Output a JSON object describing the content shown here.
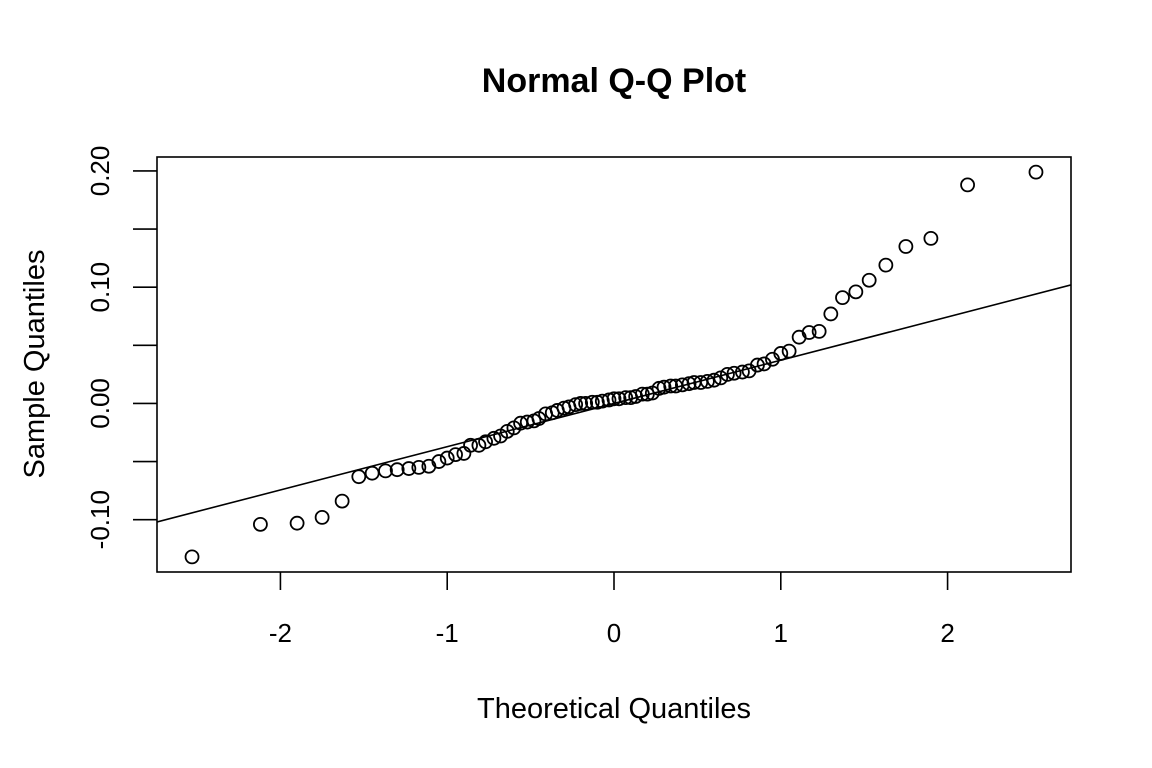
{
  "chart_data": {
    "type": "scatter",
    "title": "Normal Q-Q Plot",
    "xlabel": "Theoretical Quantiles",
    "ylabel": "Sample Quantiles",
    "xlim": [
      -2.74,
      2.74
    ],
    "ylim": [
      -0.145,
      0.212
    ],
    "xticks": [
      -2,
      -1,
      0,
      1,
      2
    ],
    "xtick_labels": [
      "-2",
      "-1",
      "0",
      "1",
      "2"
    ],
    "yticks": [
      -0.1,
      -0.05,
      0.0,
      0.05,
      0.1,
      0.15,
      0.2
    ],
    "ytick_labels": [
      "-0.10",
      "",
      "0.00",
      "",
      "0.10",
      "",
      "0.20"
    ],
    "grid": false,
    "reference_line": {
      "intercept": 0.0,
      "slope": 0.0372
    },
    "points": [
      [
        -2.53,
        -0.132
      ],
      [
        -2.12,
        -0.104
      ],
      [
        -1.9,
        -0.103
      ],
      [
        -1.75,
        -0.098
      ],
      [
        -1.63,
        -0.084
      ],
      [
        -1.53,
        -0.063
      ],
      [
        -1.45,
        -0.06
      ],
      [
        -1.37,
        -0.058
      ],
      [
        -1.3,
        -0.057
      ],
      [
        -1.23,
        -0.056
      ],
      [
        -1.17,
        -0.055
      ],
      [
        -1.11,
        -0.054
      ],
      [
        -1.05,
        -0.05
      ],
      [
        -1.0,
        -0.047
      ],
      [
        -0.95,
        -0.044
      ],
      [
        -0.9,
        -0.043
      ],
      [
        -0.86,
        -0.036
      ],
      [
        -0.81,
        -0.036
      ],
      [
        -0.77,
        -0.033
      ],
      [
        -0.72,
        -0.03
      ],
      [
        -0.68,
        -0.028
      ],
      [
        -0.64,
        -0.024
      ],
      [
        -0.6,
        -0.021
      ],
      [
        -0.56,
        -0.017
      ],
      [
        -0.52,
        -0.016
      ],
      [
        -0.48,
        -0.015
      ],
      [
        -0.45,
        -0.013
      ],
      [
        -0.41,
        -0.009
      ],
      [
        -0.37,
        -0.008
      ],
      [
        -0.34,
        -0.006
      ],
      [
        -0.3,
        -0.004
      ],
      [
        -0.27,
        -0.003
      ],
      [
        -0.23,
        -0.001
      ],
      [
        -0.2,
        0.0
      ],
      [
        -0.17,
        0.0
      ],
      [
        -0.13,
        0.001
      ],
      [
        -0.1,
        0.001
      ],
      [
        -0.07,
        0.002
      ],
      [
        -0.03,
        0.003
      ],
      [
        0.0,
        0.004
      ],
      [
        0.03,
        0.004
      ],
      [
        0.07,
        0.005
      ],
      [
        0.1,
        0.005
      ],
      [
        0.13,
        0.006
      ],
      [
        0.17,
        0.008
      ],
      [
        0.2,
        0.008
      ],
      [
        0.23,
        0.009
      ],
      [
        0.27,
        0.013
      ],
      [
        0.3,
        0.014
      ],
      [
        0.34,
        0.015
      ],
      [
        0.37,
        0.015
      ],
      [
        0.41,
        0.016
      ],
      [
        0.45,
        0.017
      ],
      [
        0.48,
        0.018
      ],
      [
        0.52,
        0.018
      ],
      [
        0.56,
        0.019
      ],
      [
        0.6,
        0.02
      ],
      [
        0.64,
        0.022
      ],
      [
        0.68,
        0.025
      ],
      [
        0.72,
        0.026
      ],
      [
        0.77,
        0.027
      ],
      [
        0.81,
        0.028
      ],
      [
        0.86,
        0.033
      ],
      [
        0.9,
        0.034
      ],
      [
        0.95,
        0.038
      ],
      [
        1.0,
        0.043
      ],
      [
        1.05,
        0.045
      ],
      [
        1.11,
        0.057
      ],
      [
        1.17,
        0.061
      ],
      [
        1.23,
        0.062
      ],
      [
        1.3,
        0.077
      ],
      [
        1.37,
        0.091
      ],
      [
        1.45,
        0.096
      ],
      [
        1.53,
        0.106
      ],
      [
        1.63,
        0.119
      ],
      [
        1.75,
        0.135
      ],
      [
        1.9,
        0.142
      ],
      [
        2.12,
        0.188
      ],
      [
        2.53,
        0.199
      ]
    ]
  }
}
